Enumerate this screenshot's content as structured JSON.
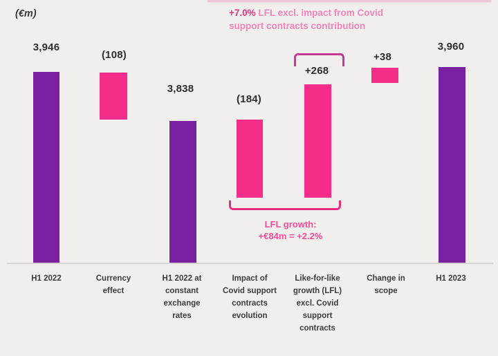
{
  "unit_label": "(€m)",
  "annotation": {
    "highlight": "+7.0%",
    "line1_rest": " LFL excl. impact from Covid",
    "line2": "support contracts contribution"
  },
  "lfl_note": {
    "line1": "LFL growth:",
    "line2": "+€84m = +2.2%"
  },
  "bars": [
    {
      "value_label": "3,946",
      "category": "H1 2022"
    },
    {
      "value_label": "(108)",
      "category": "Currency\neffect"
    },
    {
      "value_label": "3,838",
      "category": "H1 2022 at\nconstant\nexchange\nrates"
    },
    {
      "value_label": "(184)",
      "category": "Impact of\nCovid support\ncontracts\nevolution"
    },
    {
      "value_label": "+268",
      "category": "Like-for-like\ngrowth (LFL)\nexcl. Covid\nsupport\ncontracts"
    },
    {
      "value_label": "+38",
      "category": "Change in\nscope"
    },
    {
      "value_label": "3,960",
      "category": "H1 2023"
    }
  ],
  "colors": {
    "purple_bar": "#7a21a2",
    "pink_bar": "#f42d8a",
    "annotation_highlight": "#e0347f",
    "annotation_rest": "#ef85b7",
    "top_bracket": "#c53a92",
    "bottom_bracket": "#e82e80",
    "lfl_note_text": "#f04e98",
    "background": "#f0efed",
    "baseline": "#d7d5d2",
    "value_text": "#2e2e2e",
    "category_text": "#3c3c3c"
  },
  "chart_data": {
    "type": "bar",
    "subtype": "waterfall",
    "unit": "€m",
    "title": "+7.0% LFL excl. impact from Covid support contracts contribution",
    "categories": [
      "H1 2022",
      "Currency effect",
      "H1 2022 at constant exchange rates",
      "Impact of Covid support contracts evolution",
      "Like-for-like growth (LFL) excl. Covid support contracts",
      "Change in scope",
      "H1 2023"
    ],
    "values": [
      3946,
      -108,
      3838,
      -184,
      268,
      38,
      3960
    ],
    "value_labels": [
      "3,946",
      "(108)",
      "3,838",
      "(184)",
      "+268",
      "+38",
      "3,960"
    ],
    "bar_roles": [
      "total",
      "delta-negative",
      "total",
      "delta-negative",
      "delta-positive",
      "delta-positive",
      "total"
    ],
    "bar_colors": [
      "#7a21a2",
      "#f42d8a",
      "#7a21a2",
      "#f42d8a",
      "#f42d8a",
      "#f42d8a",
      "#7a21a2"
    ],
    "annotations": [
      {
        "text": "+7.0% LFL excl. impact from Covid support contracts contribution",
        "position": "top-center"
      },
      {
        "text": "LFL growth: +€84m = +2.2%",
        "position": "below LFL bars, bracketed",
        "relation": "(184) + 268 = +84"
      }
    ],
    "layout_hints": {
      "y_axis_visible": false,
      "gridlines": false,
      "zero_baseline_visible": true,
      "delta_bars_exaggerated_scale": true,
      "bracket_over_bar": "+268",
      "bracket_under_bars": [
        "(184)",
        "+268"
      ]
    }
  }
}
